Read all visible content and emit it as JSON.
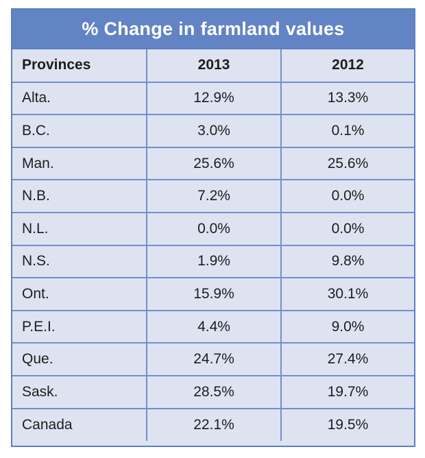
{
  "chart_data": {
    "type": "table",
    "title": "% Change in farmland values",
    "columns": [
      "Provinces",
      "2013",
      "2012"
    ],
    "rows": [
      [
        "Alta.",
        "12.9%",
        "13.3%"
      ],
      [
        "B.C.",
        "3.0%",
        "0.1%"
      ],
      [
        "Man.",
        "25.6%",
        "25.6%"
      ],
      [
        "N.B.",
        "7.2%",
        "0.0%"
      ],
      [
        "N.L.",
        "0.0%",
        "0.0%"
      ],
      [
        "N.S.",
        "1.9%",
        "9.8%"
      ],
      [
        "Ont.",
        "15.9%",
        "30.1%"
      ],
      [
        "P.E.I.",
        "4.4%",
        "9.0%"
      ],
      [
        "Que.",
        "24.7%",
        "27.4%"
      ],
      [
        "Sask.",
        "28.5%",
        "19.7%"
      ],
      [
        "Canada",
        "22.1%",
        "19.5%"
      ]
    ],
    "series": [
      {
        "name": "2013",
        "values": [
          12.9,
          3.0,
          25.6,
          7.2,
          0.0,
          1.9,
          15.9,
          4.4,
          24.7,
          28.5,
          22.1
        ]
      },
      {
        "name": "2012",
        "values": [
          13.3,
          0.1,
          25.6,
          0.0,
          0.0,
          9.8,
          30.1,
          9.0,
          27.4,
          19.7,
          19.5
        ]
      }
    ],
    "categories": [
      "Alta.",
      "B.C.",
      "Man.",
      "N.B.",
      "N.L.",
      "N.S.",
      "Ont.",
      "P.E.I.",
      "Que.",
      "Sask.",
      "Canada"
    ]
  },
  "colors": {
    "title_background": "#6284c4",
    "title_text": "#ffffff",
    "cell_background": "#dde3f1",
    "grid_line": "#6e90cc",
    "cell_text": "#1d1d1d"
  }
}
